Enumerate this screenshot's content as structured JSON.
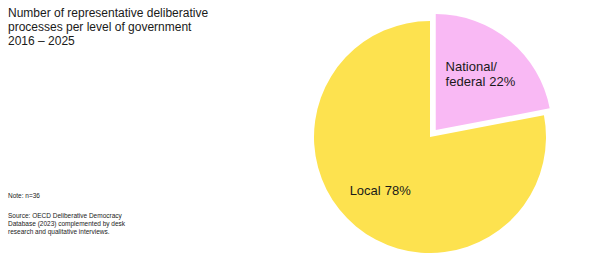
{
  "chart_data": {
    "type": "pie",
    "title": "Number of representative deliberative processes per level of government 2016 – 2025",
    "categories": [
      "Local",
      "National/federal"
    ],
    "values": [
      78,
      22
    ],
    "value_labels": [
      "78%",
      "22%"
    ],
    "colors": [
      "#fde24f",
      "#f9b9f4"
    ],
    "data_labels": true,
    "annotations": [
      "Note: n=36",
      "Source: OECD Deliberative Democracy Database (2023) complemented by desk research and qualitative interviews."
    ]
  }
}
